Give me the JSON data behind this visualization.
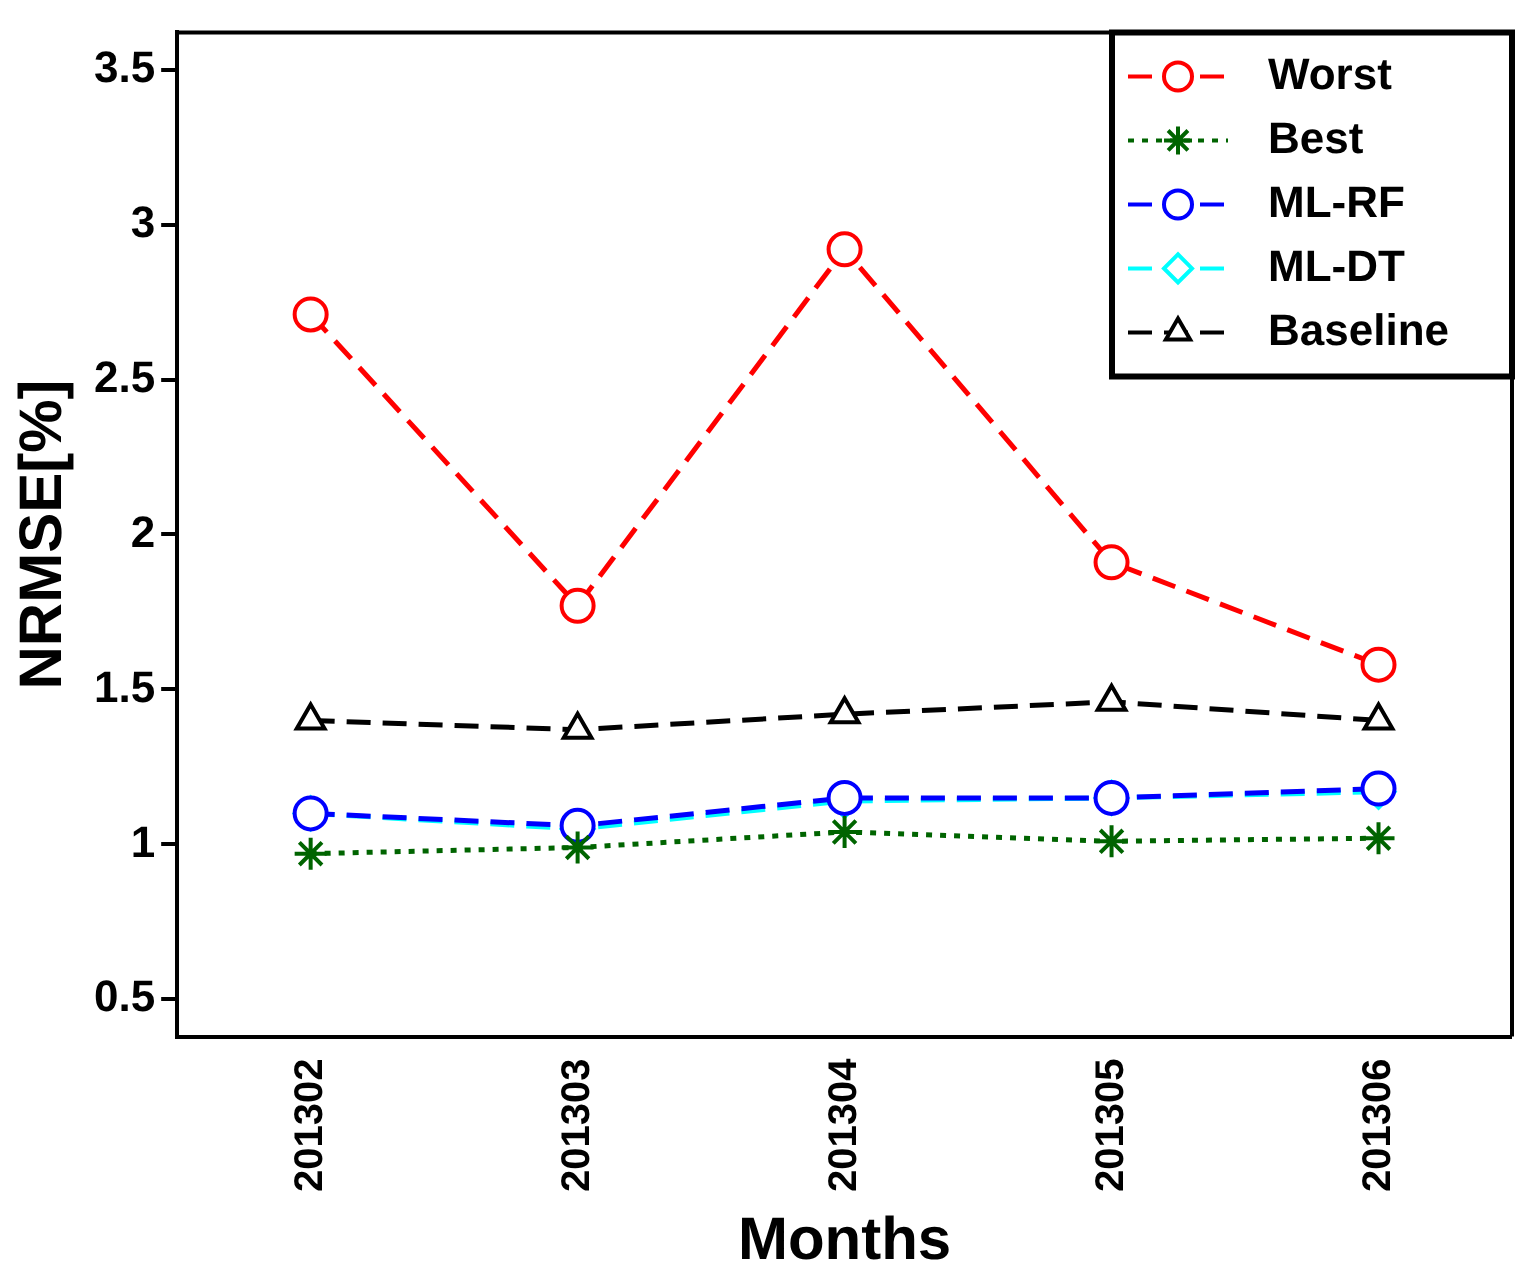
{
  "chart_data": {
    "type": "line",
    "xlabel": "Months",
    "ylabel": "NRMSE[%]",
    "categories": [
      "201302",
      "201303",
      "201304",
      "201305",
      "201306"
    ],
    "series": [
      {
        "name": "Worst",
        "color": "#ff0000",
        "marker": "circle",
        "line_style": "dashed",
        "values": [
          2.71,
          1.77,
          2.92,
          1.91,
          1.58
        ]
      },
      {
        "name": "Best",
        "color": "#006400",
        "marker": "cross",
        "line_style": "dotted",
        "values": [
          0.97,
          0.99,
          1.04,
          1.01,
          1.02
        ]
      },
      {
        "name": "ML-RF",
        "color": "#0000ff",
        "marker": "circle",
        "line_style": "dashed",
        "values": [
          1.1,
          1.06,
          1.15,
          1.15,
          1.18
        ]
      },
      {
        "name": "ML-DT",
        "color": "#00ffff",
        "marker": "diamond",
        "line_style": "dashed",
        "values": [
          1.1,
          1.05,
          1.14,
          1.15,
          1.17
        ]
      },
      {
        "name": "Baseline",
        "color": "#000000",
        "marker": "triangle",
        "line_style": "dashed",
        "values": [
          1.4,
          1.37,
          1.42,
          1.46,
          1.4
        ]
      }
    ],
    "ylim": [
      0.38,
      3.62
    ],
    "yticks": [
      0.5,
      1,
      1.5,
      2,
      2.5,
      3,
      3.5
    ],
    "grid": false,
    "legend": "top right"
  }
}
